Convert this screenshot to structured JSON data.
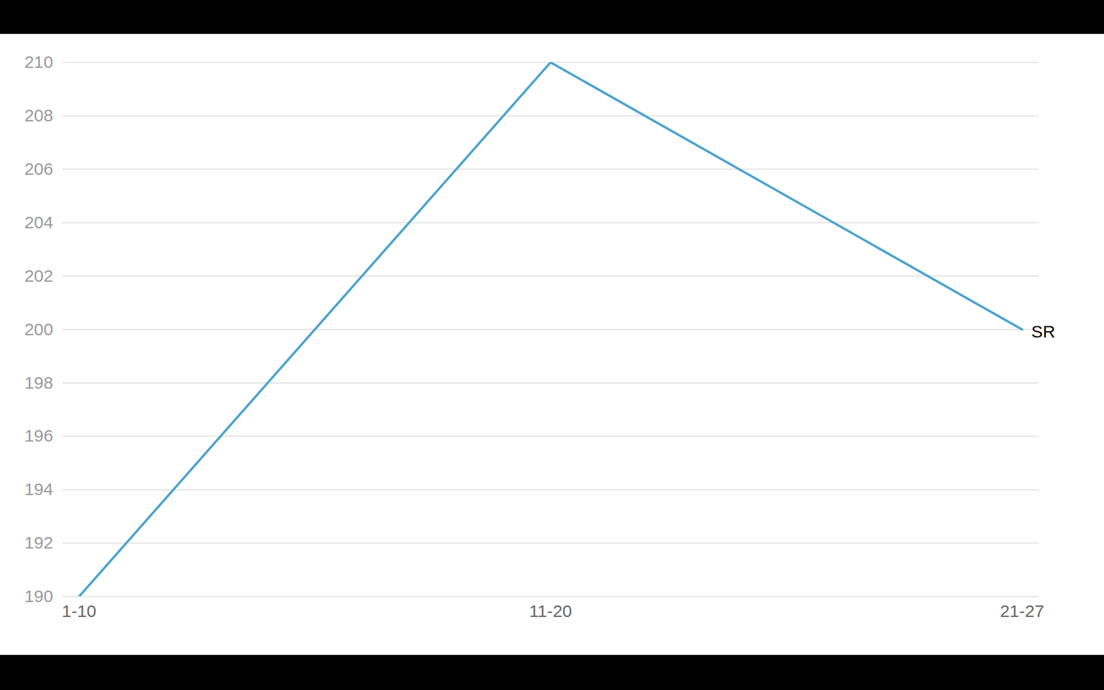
{
  "chart_data": {
    "type": "line",
    "categories": [
      "1-10",
      "11-20",
      "21-27"
    ],
    "series": [
      {
        "name": "SR",
        "color": "#4ba3cc",
        "values": [
          190,
          210,
          200
        ]
      }
    ],
    "ylim": [
      190,
      210
    ],
    "yticks": [
      190,
      192,
      194,
      196,
      198,
      200,
      202,
      204,
      206,
      208,
      210
    ],
    "grid": true
  }
}
